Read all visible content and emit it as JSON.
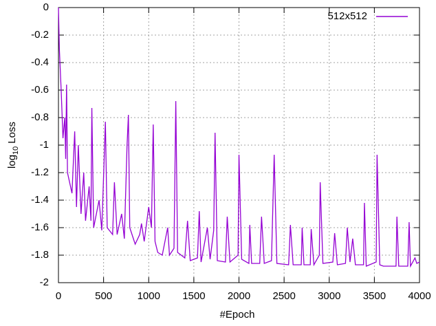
{
  "chart_data": {
    "type": "line",
    "x_label": "#Epoch",
    "y_label": "log",
    "y_label_subscript": "10",
    "y_label_suffix": "Loss",
    "xlim": [
      0,
      4000
    ],
    "xticks": [
      0,
      500,
      1000,
      1500,
      2000,
      2500,
      3000,
      3500,
      4000
    ],
    "ylim": [
      -2,
      0
    ],
    "yticks": [
      -2,
      -1.8,
      -1.6,
      -1.4,
      -1.2,
      -1,
      -0.8,
      -0.6,
      -0.4,
      -0.2,
      0
    ],
    "grid": true,
    "legend": "top-right",
    "x": [
      0,
      10,
      30,
      50,
      70,
      80,
      90,
      100,
      150,
      180,
      200,
      220,
      250,
      280,
      300,
      340,
      360,
      370,
      390,
      450,
      480,
      520,
      540,
      600,
      620,
      650,
      700,
      730,
      760,
      775,
      790,
      850,
      900,
      920,
      950,
      1000,
      1030,
      1050,
      1070,
      1100,
      1150,
      1210,
      1230,
      1280,
      1300,
      1320,
      1400,
      1430,
      1460,
      1540,
      1560,
      1580,
      1650,
      1680,
      1720,
      1735,
      1760,
      1850,
      1870,
      1900,
      1990,
      2000,
      2030,
      2110,
      2120,
      2140,
      2230,
      2250,
      2280,
      2360,
      2390,
      2420,
      2550,
      2570,
      2600,
      2690,
      2700,
      2720,
      2790,
      2800,
      2830,
      2890,
      2900,
      2930,
      3040,
      3060,
      3090,
      3180,
      3200,
      3230,
      3260,
      3290,
      3380,
      3390,
      3410,
      3520,
      3530,
      3560,
      3600,
      3740,
      3750,
      3770,
      3870,
      3885,
      3900,
      3950,
      3970,
      4000
    ],
    "series": [
      {
        "name": "512x512",
        "color": "#9400d3",
        "values": [
          0,
          -0.3,
          -0.6,
          -0.95,
          -0.8,
          -1.1,
          -0.56,
          -1.2,
          -1.35,
          -0.9,
          -1.45,
          -1.0,
          -1.5,
          -1.2,
          -1.55,
          -1.3,
          -1.55,
          -0.73,
          -1.6,
          -1.4,
          -1.62,
          -0.83,
          -1.6,
          -1.65,
          -1.27,
          -1.65,
          -1.5,
          -1.68,
          -1.0,
          -0.78,
          -1.6,
          -1.72,
          -1.65,
          -1.57,
          -1.7,
          -1.45,
          -1.6,
          -0.85,
          -1.7,
          -1.78,
          -1.8,
          -1.6,
          -1.8,
          -1.75,
          -0.68,
          -1.78,
          -1.82,
          -1.55,
          -1.84,
          -1.82,
          -1.48,
          -1.85,
          -1.6,
          -1.83,
          -1.62,
          -0.91,
          -1.84,
          -1.85,
          -1.52,
          -1.85,
          -1.8,
          -1.07,
          -1.83,
          -1.86,
          -1.58,
          -1.86,
          -1.86,
          -1.52,
          -1.86,
          -1.84,
          -1.07,
          -1.86,
          -1.87,
          -1.58,
          -1.87,
          -1.87,
          -1.6,
          -1.87,
          -1.87,
          -1.61,
          -1.87,
          -1.8,
          -1.27,
          -1.86,
          -1.85,
          -1.64,
          -1.87,
          -1.86,
          -1.6,
          -1.85,
          -1.68,
          -1.87,
          -1.87,
          -1.42,
          -1.88,
          -1.85,
          -1.07,
          -1.87,
          -1.88,
          -1.88,
          -1.52,
          -1.88,
          -1.88,
          -1.56,
          -1.88,
          -1.82,
          -1.86,
          -1.85
        ]
      }
    ]
  }
}
